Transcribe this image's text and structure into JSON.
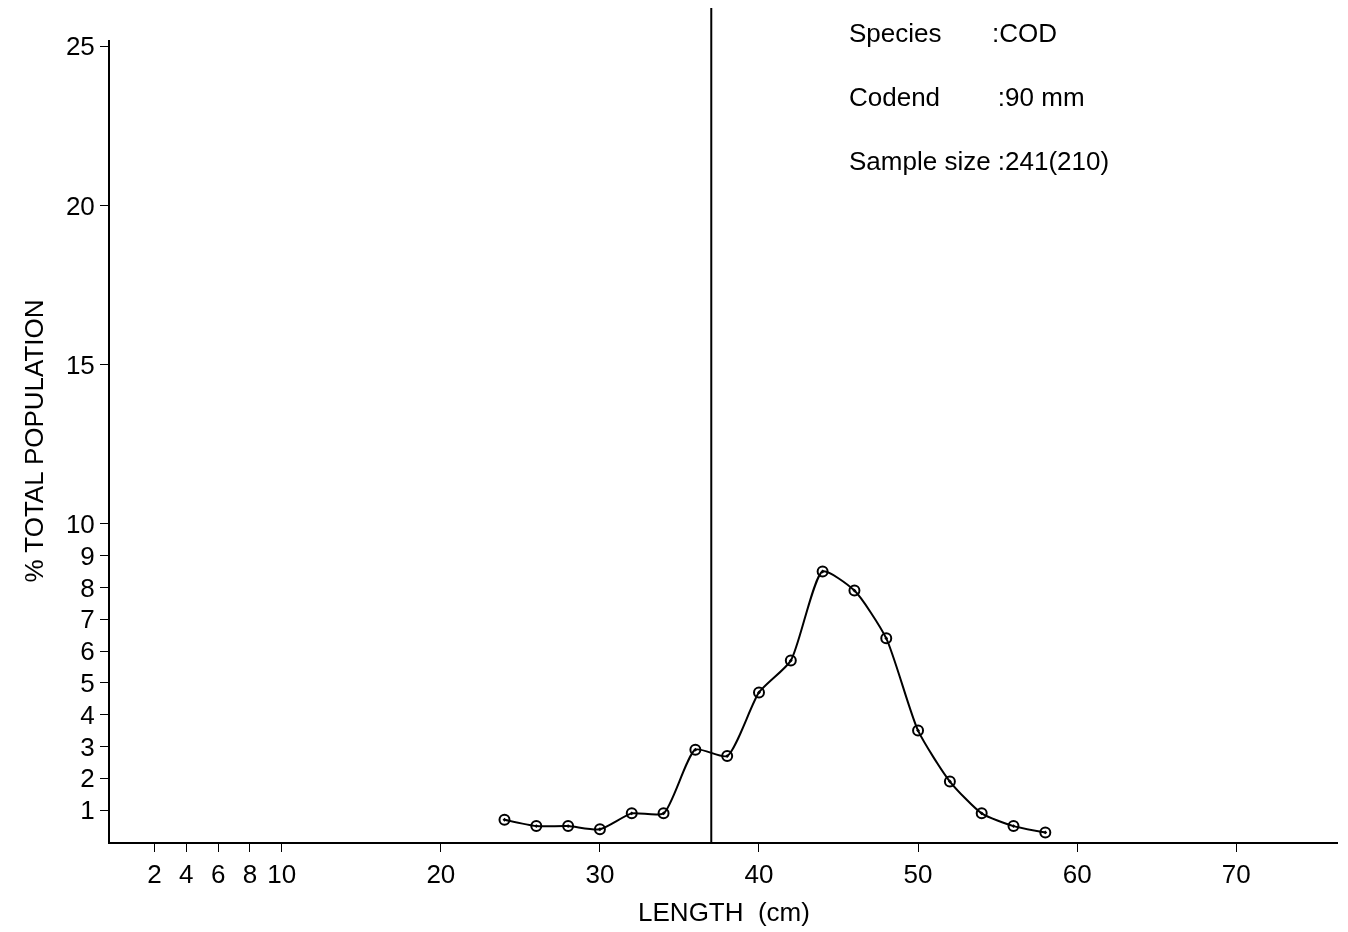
{
  "chart_data": {
    "type": "line",
    "xlabel": "LENGTH  (cm)",
    "ylabel": "% TOTAL POPULATION",
    "x": [
      24,
      26,
      28,
      30,
      32,
      34,
      36,
      38,
      40,
      42,
      44,
      46,
      48,
      50,
      52,
      54,
      56,
      58
    ],
    "series": [
      {
        "color": "#000000",
        "values": [
          0.7,
          0.5,
          0.5,
          0.4,
          0.9,
          0.9,
          2.9,
          2.7,
          4.7,
          5.7,
          8.5,
          7.9,
          6.4,
          3.5,
          1.9,
          0.9,
          0.5,
          0.3
        ]
      }
    ],
    "xlim": [
      -0.8,
      76.4
    ],
    "xticks": [
      2,
      4,
      6,
      8,
      10,
      20,
      30,
      40,
      50,
      60,
      70
    ],
    "ylim": [
      0,
      25.2
    ],
    "yticks": [
      1,
      2,
      3,
      4,
      5,
      6,
      7,
      8,
      9,
      10,
      15,
      20,
      25
    ],
    "ref_lines": [
      {
        "axis": "x",
        "value": 37,
        "color": "#000000"
      }
    ],
    "annotations": [
      "Species       :COD",
      "Codend        :90 mm",
      "Sample size :241(210)"
    ],
    "marker": "circle",
    "line_style": "solid"
  }
}
